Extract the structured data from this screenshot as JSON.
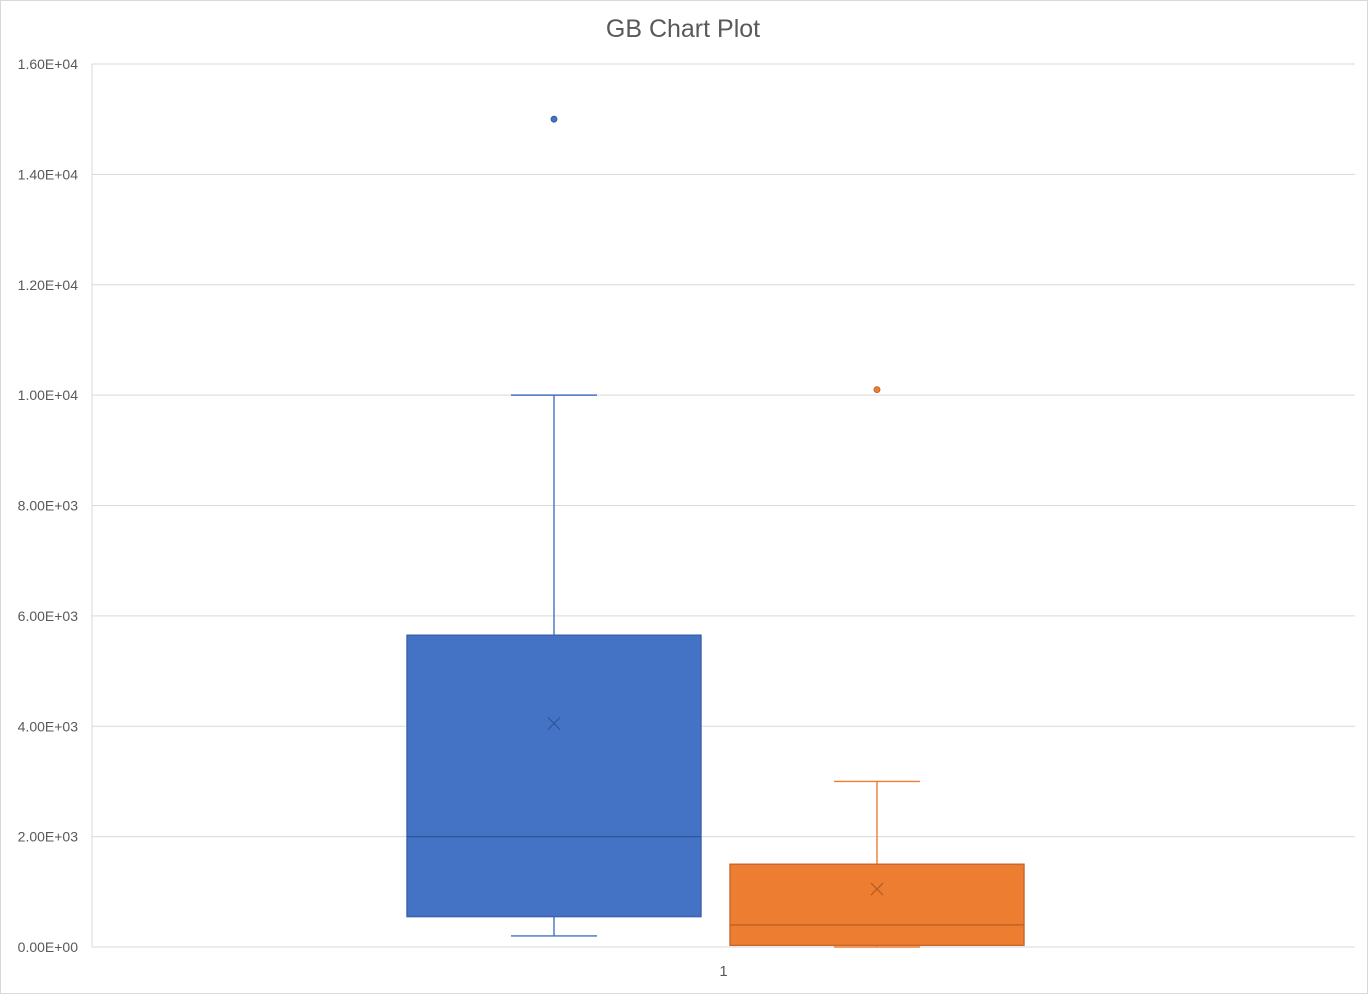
{
  "chart_data": {
    "type": "box",
    "title": "GB Chart Plot",
    "categories": [
      "1"
    ],
    "ylim": [
      0,
      16000
    ],
    "yticks": [
      0,
      2000,
      4000,
      6000,
      8000,
      10000,
      12000,
      14000,
      16000
    ],
    "ytick_labels": [
      "0.00E+00",
      "2.00E+03",
      "4.00E+03",
      "6.00E+03",
      "8.00E+03",
      "1.00E+04",
      "1.20E+04",
      "1.40E+04",
      "1.60E+04"
    ],
    "grid": true,
    "legend": "none",
    "series": [
      {
        "color": "#4472C4",
        "whisker_low": 200,
        "q1": 550,
        "median": 2000,
        "q3": 5650,
        "whisker_high": 10000,
        "mean": 4050,
        "outliers": [
          15000
        ]
      },
      {
        "color": "#ED7D31",
        "whisker_low": 0,
        "q1": 30,
        "median": 400,
        "q3": 1500,
        "whisker_high": 3000,
        "mean": 1050,
        "outliers": [
          10100
        ]
      }
    ]
  }
}
